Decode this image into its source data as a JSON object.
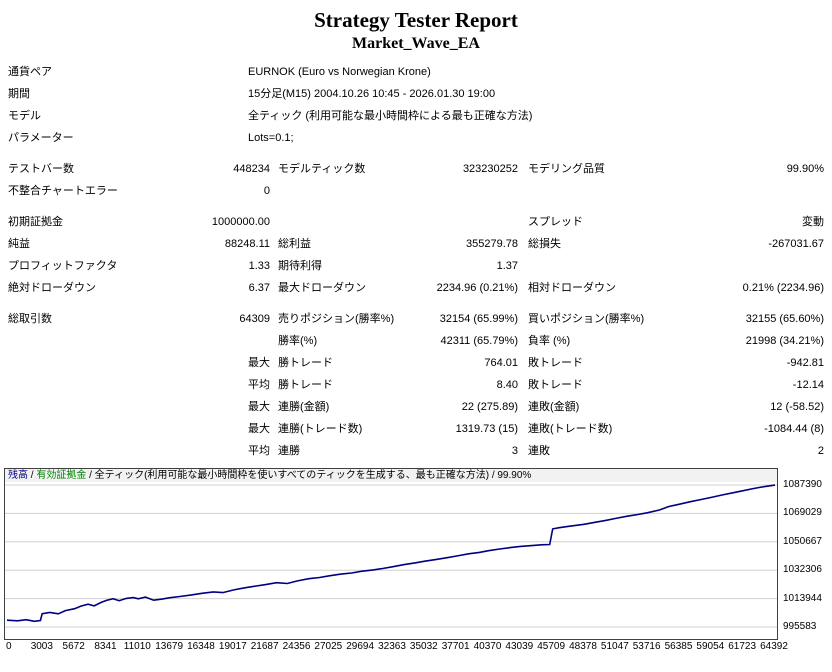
{
  "report": {
    "title": "Strategy Tester Report",
    "subtitle": "Market_Wave_EA"
  },
  "table": {
    "rows": [
      {
        "type": "info",
        "label": "通貨ペア",
        "value": "EURNOK (Euro vs Norwegian Krone)"
      },
      {
        "type": "info",
        "label": "期間",
        "value": "15分足(M15) 2004.10.26 10:45 - 2026.01.30 19:00"
      },
      {
        "type": "info",
        "label": "モデル",
        "value": "全ティック (利用可能な最小時間枠による最も正確な方法)"
      },
      {
        "type": "info",
        "label": "パラメーター",
        "value": "Lots=0.1;"
      },
      {
        "type": "gap"
      },
      {
        "type": "stats",
        "cells": [
          "テストバー数",
          "448234",
          "モデルティック数",
          "323230252",
          "モデリング品質",
          "99.90%"
        ]
      },
      {
        "type": "stats",
        "cells": [
          "不整合チャートエラー",
          "0",
          "",
          "",
          "",
          ""
        ]
      },
      {
        "type": "gap"
      },
      {
        "type": "stats",
        "cells": [
          "初期証拠金",
          "1000000.00",
          "",
          "",
          "スプレッド",
          "変動"
        ]
      },
      {
        "type": "stats",
        "cells": [
          "純益",
          "88248.11",
          "総利益",
          "355279.78",
          "総損失",
          "-267031.67"
        ]
      },
      {
        "type": "stats",
        "cells": [
          "プロフィットファクタ",
          "1.33",
          "期待利得",
          "1.37",
          "",
          ""
        ]
      },
      {
        "type": "stats",
        "cells": [
          "絶対ドローダウン",
          "6.37",
          "最大ドローダウン",
          "2234.96 (0.21%)",
          "相対ドローダウン",
          "0.21% (2234.96)"
        ]
      },
      {
        "type": "gap"
      },
      {
        "type": "stats",
        "cells": [
          "総取引数",
          "64309",
          "売りポジション(勝率%)",
          "32154 (65.99%)",
          "買いポジション(勝率%)",
          "32155 (65.60%)"
        ]
      },
      {
        "type": "stats",
        "cells": [
          "",
          "",
          "勝率(%)",
          "42311 (65.79%)",
          "負率 (%)",
          "21998 (34.21%)"
        ]
      },
      {
        "type": "stats",
        "cells": [
          "",
          "最大",
          "勝トレード",
          "764.01",
          "敗トレード",
          "-942.81"
        ]
      },
      {
        "type": "stats",
        "cells": [
          "",
          "平均",
          "勝トレード",
          "8.40",
          "敗トレード",
          "-12.14"
        ]
      },
      {
        "type": "stats",
        "cells": [
          "",
          "最大",
          "連勝(金額)",
          "22 (275.89)",
          "連敗(金額)",
          "12 (-58.52)"
        ]
      },
      {
        "type": "stats",
        "cells": [
          "",
          "最大",
          "連勝(トレード数)",
          "1319.73 (15)",
          "連敗(トレード数)",
          "-1084.44 (8)"
        ]
      },
      {
        "type": "stats",
        "cells": [
          "",
          "平均",
          "連勝",
          "3",
          "連敗",
          "2"
        ]
      }
    ]
  },
  "chart_data": {
    "type": "line",
    "title": "残高 / 有効証拠金 / 全ティック(利用可能な最小時間枠を使いすべてのティックを生成する、最も正確な方法) / 99.90%",
    "caption_segments": [
      {
        "text": "残高",
        "color": "#000080"
      },
      {
        "text": " / ",
        "color": "#000000"
      },
      {
        "text": "有効証拠金",
        "color": "#008000"
      },
      {
        "text": " / 全ティック(利用可能な最小時間枠を使いすべてのティックを生成する、最も正確な方法) / 99.90%",
        "color": "#000000"
      }
    ],
    "xlabel": "",
    "ylabel": "",
    "xlim": [
      0,
      64392
    ],
    "ylim": [
      995583,
      1087390
    ],
    "x_ticks": [
      0,
      3003,
      5672,
      8341,
      11010,
      13679,
      16348,
      19017,
      21687,
      24356,
      27025,
      29694,
      32363,
      35032,
      37701,
      40370,
      43039,
      45709,
      48378,
      51047,
      53716,
      56385,
      59054,
      61723,
      64392
    ],
    "y_ticks": [
      995583,
      1013944,
      1032306,
      1050667,
      1069029,
      1087390
    ],
    "grid": "horizontal",
    "grid_color": "#d0d0d0",
    "legend_position": "top-left",
    "series": [
      {
        "name": "残高",
        "color": "#000080",
        "points": [
          [
            0,
            1000000
          ],
          [
            900,
            999600
          ],
          [
            1600,
            1000300
          ],
          [
            2300,
            999300
          ],
          [
            2800,
            999800
          ],
          [
            2950,
            1004200
          ],
          [
            3600,
            1005000
          ],
          [
            4300,
            1004100
          ],
          [
            4900,
            1006200
          ],
          [
            5672,
            1007400
          ],
          [
            6200,
            1009100
          ],
          [
            6800,
            1010300
          ],
          [
            7300,
            1009200
          ],
          [
            7900,
            1011500
          ],
          [
            8341,
            1012800
          ],
          [
            8900,
            1013900
          ],
          [
            9400,
            1012600
          ],
          [
            10000,
            1014100
          ],
          [
            10600,
            1014600
          ],
          [
            11010,
            1013800
          ],
          [
            11600,
            1014900
          ],
          [
            12300,
            1012900
          ],
          [
            13000,
            1013600
          ],
          [
            13679,
            1014500
          ],
          [
            14500,
            1015300
          ],
          [
            15400,
            1016200
          ],
          [
            16348,
            1017400
          ],
          [
            17300,
            1018300
          ],
          [
            18100,
            1017800
          ],
          [
            19017,
            1019600
          ],
          [
            20000,
            1021000
          ],
          [
            20900,
            1022100
          ],
          [
            21687,
            1023000
          ],
          [
            22600,
            1024200
          ],
          [
            23500,
            1023700
          ],
          [
            24356,
            1025400
          ],
          [
            25300,
            1026800
          ],
          [
            26200,
            1027600
          ],
          [
            27025,
            1028700
          ],
          [
            28000,
            1029800
          ],
          [
            28900,
            1030500
          ],
          [
            29694,
            1031600
          ],
          [
            30700,
            1032500
          ],
          [
            31500,
            1033400
          ],
          [
            32363,
            1034600
          ],
          [
            33300,
            1035900
          ],
          [
            34200,
            1037000
          ],
          [
            35032,
            1038100
          ],
          [
            36000,
            1039300
          ],
          [
            36900,
            1040400
          ],
          [
            37701,
            1041500
          ],
          [
            38700,
            1042900
          ],
          [
            39600,
            1043800
          ],
          [
            40370,
            1044900
          ],
          [
            41300,
            1046000
          ],
          [
            42200,
            1046900
          ],
          [
            43039,
            1047700
          ],
          [
            44000,
            1048200
          ],
          [
            44800,
            1048700
          ],
          [
            45500,
            1048900
          ],
          [
            45750,
            1059000
          ],
          [
            46300,
            1059800
          ],
          [
            47100,
            1060700
          ],
          [
            48378,
            1062000
          ],
          [
            49300,
            1063300
          ],
          [
            50200,
            1064500
          ],
          [
            51047,
            1065800
          ],
          [
            52000,
            1067200
          ],
          [
            52900,
            1068300
          ],
          [
            53716,
            1069500
          ],
          [
            54700,
            1071200
          ],
          [
            55500,
            1073500
          ],
          [
            56385,
            1075000
          ],
          [
            57300,
            1076600
          ],
          [
            58200,
            1078000
          ],
          [
            59054,
            1079400
          ],
          [
            60000,
            1081000
          ],
          [
            60900,
            1082400
          ],
          [
            61723,
            1083700
          ],
          [
            62400,
            1084800
          ],
          [
            63000,
            1085700
          ],
          [
            63600,
            1086500
          ],
          [
            64100,
            1087000
          ],
          [
            64392,
            1087300
          ]
        ]
      }
    ]
  }
}
